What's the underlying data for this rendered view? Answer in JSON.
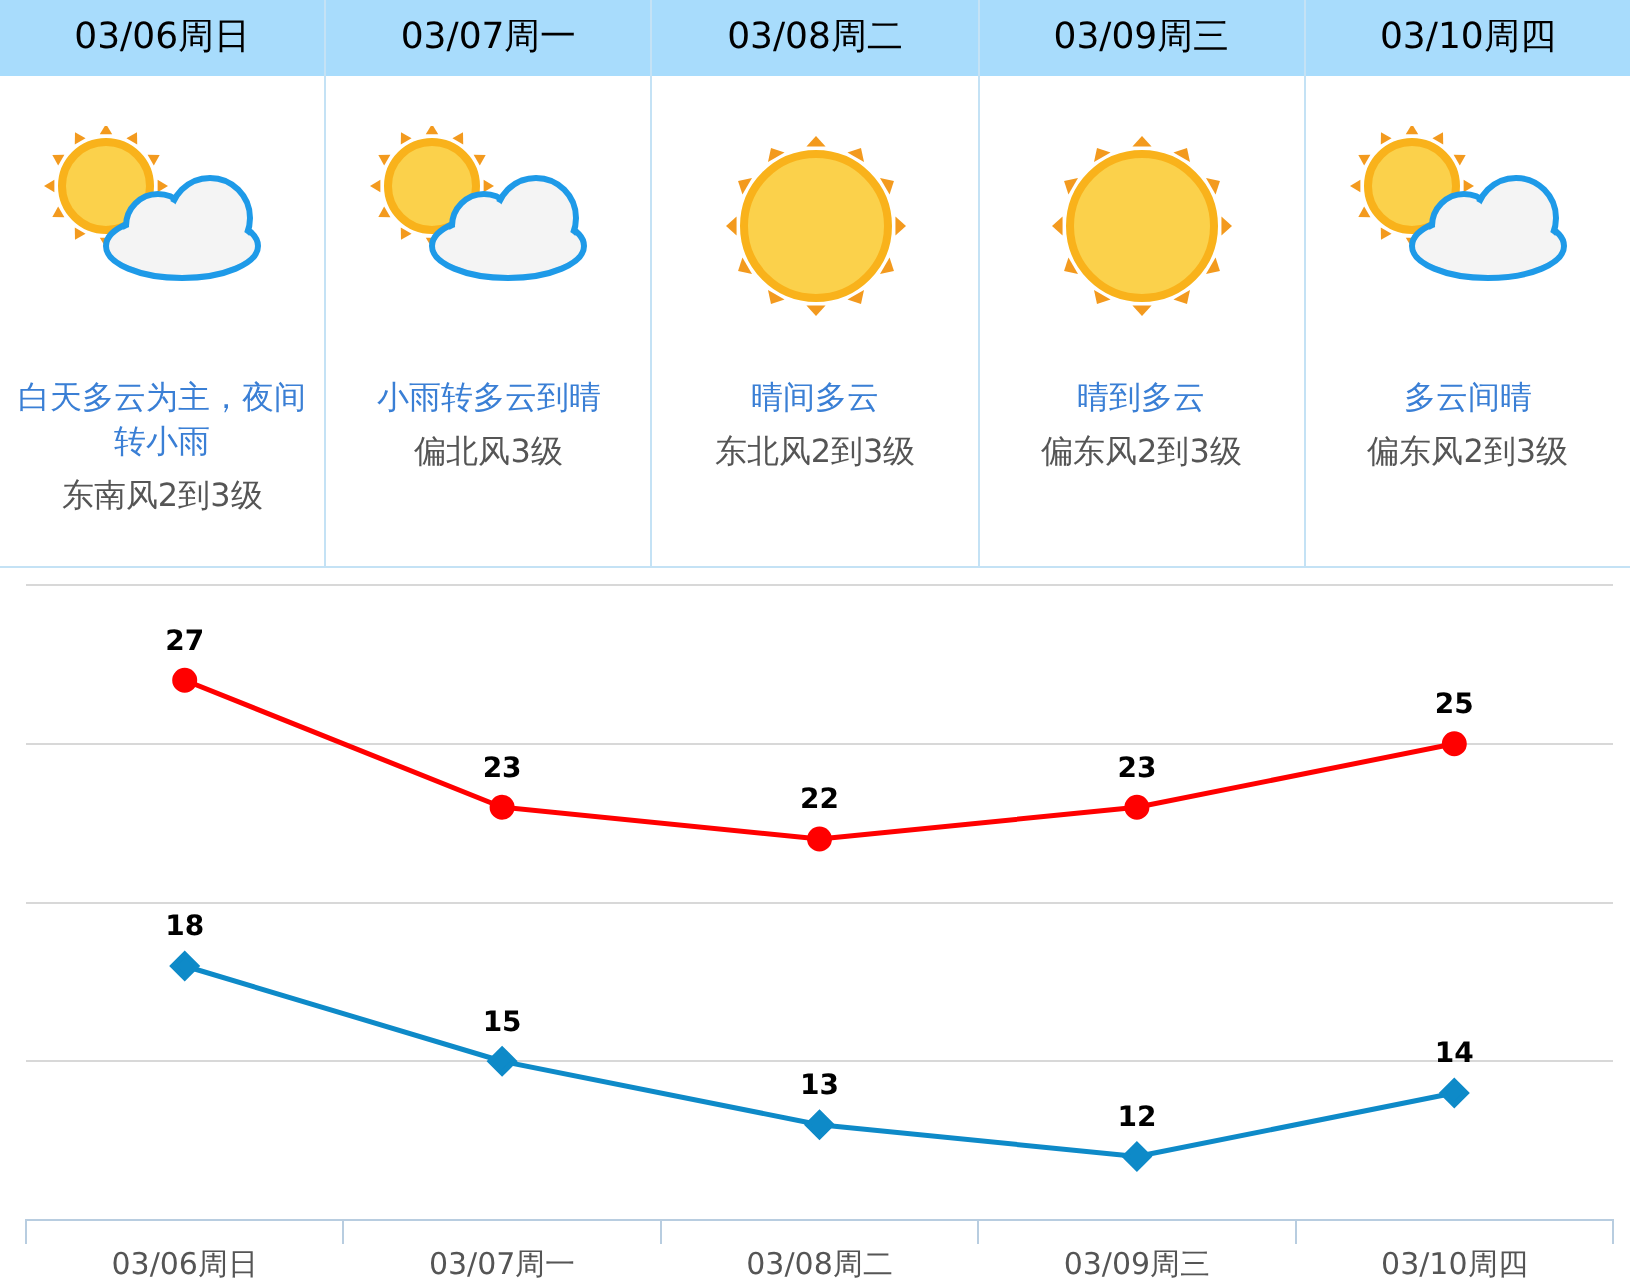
{
  "chart_data": {
    "type": "line",
    "categories": [
      "03/06周日",
      "03/07周一",
      "03/08周二",
      "03/09周三",
      "03/10周四"
    ],
    "series": [
      {
        "name": null,
        "color": "#ff0000",
        "marker": "circle",
        "values": [
          27,
          23,
          22,
          23,
          25
        ]
      },
      {
        "name": null,
        "color": "#0e8ac8",
        "marker": "diamond",
        "values": [
          18,
          15,
          13,
          12,
          14
        ]
      }
    ],
    "ylim": [
      10,
      30
    ],
    "yticks": [
      {
        "value": 10,
        "label": null
      },
      {
        "value": 15,
        "label": null
      },
      {
        "value": 20,
        "label": null
      },
      {
        "value": 25,
        "label": null
      },
      {
        "value": 30,
        "label": null
      }
    ],
    "tick_labels": "x",
    "grid": "y",
    "data_labels": true,
    "legend": false,
    "annotations": [
      "白天多云为主，夜间转小雨",
      "东南风2到3级",
      "小雨转多云到晴",
      "偏北风3级",
      "晴间多云",
      "东北风2到3级",
      "晴到多云",
      "偏东风2到3级",
      "多云间晴",
      "偏东风2到3级"
    ]
  }
}
